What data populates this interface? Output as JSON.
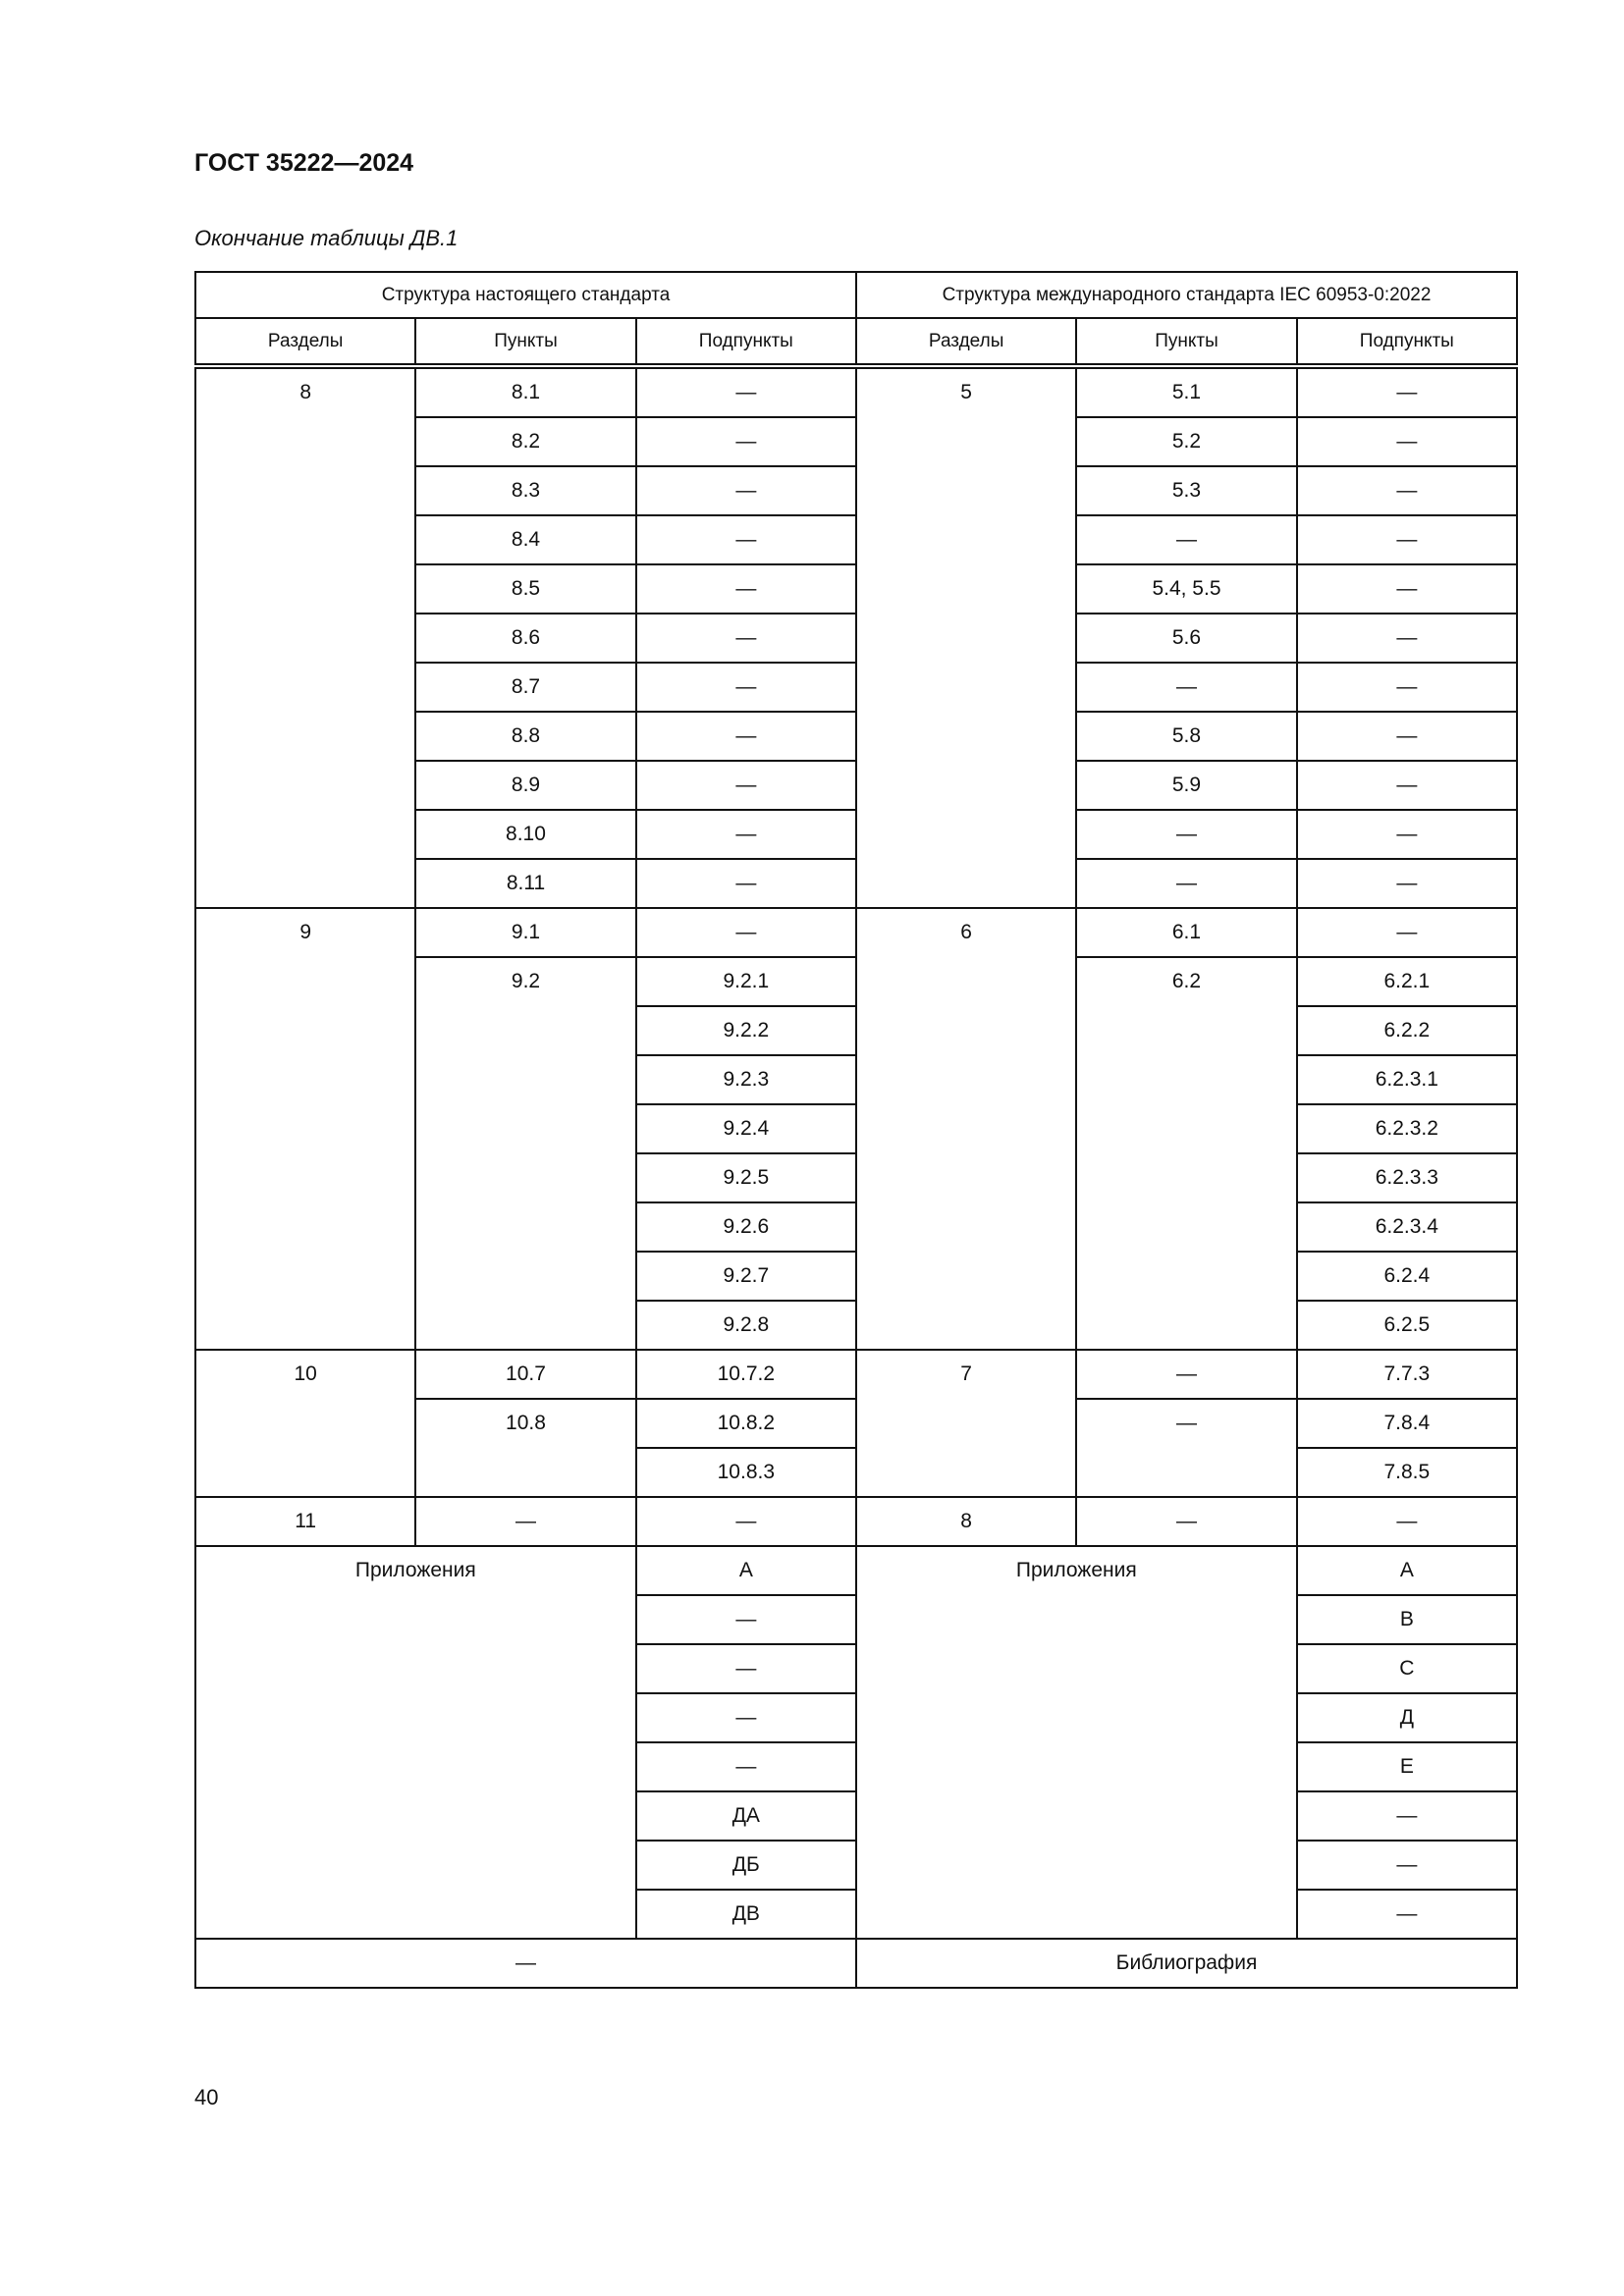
{
  "header": {
    "title": "ГОСТ 35222—2024"
  },
  "caption": "Окончание таблицы ДВ.1",
  "table": {
    "group_headers": [
      {
        "text": "Структура настоящего стандарта",
        "colspan": 3
      },
      {
        "text": "Структура международного стандарта IEC 60953-0:2022",
        "colspan": 3
      }
    ],
    "column_headers": [
      "Разделы",
      "Пункты",
      "Подпункты",
      "Разделы",
      "Пункты",
      "Подпункты"
    ],
    "rows": [
      [
        {
          "text": "8",
          "rowspan": 11
        },
        {
          "text": "8.1"
        },
        {
          "text": "—"
        },
        {
          "text": "5",
          "rowspan": 11
        },
        {
          "text": "5.1"
        },
        {
          "text": "—"
        }
      ],
      [
        {
          "text": "8.2"
        },
        {
          "text": "—"
        },
        {
          "text": "5.2"
        },
        {
          "text": "—"
        }
      ],
      [
        {
          "text": "8.3"
        },
        {
          "text": "—"
        },
        {
          "text": "5.3"
        },
        {
          "text": "—"
        }
      ],
      [
        {
          "text": "8.4"
        },
        {
          "text": "—"
        },
        {
          "text": "—"
        },
        {
          "text": "—"
        }
      ],
      [
        {
          "text": "8.5"
        },
        {
          "text": "—"
        },
        {
          "text": "5.4, 5.5"
        },
        {
          "text": "—"
        }
      ],
      [
        {
          "text": "8.6"
        },
        {
          "text": "—"
        },
        {
          "text": "5.6"
        },
        {
          "text": "—"
        }
      ],
      [
        {
          "text": "8.7"
        },
        {
          "text": "—"
        },
        {
          "text": "—"
        },
        {
          "text": "—"
        }
      ],
      [
        {
          "text": "8.8"
        },
        {
          "text": "—"
        },
        {
          "text": "5.8"
        },
        {
          "text": "—"
        }
      ],
      [
        {
          "text": "8.9"
        },
        {
          "text": "—"
        },
        {
          "text": "5.9"
        },
        {
          "text": "—"
        }
      ],
      [
        {
          "text": "8.10"
        },
        {
          "text": "—"
        },
        {
          "text": "—"
        },
        {
          "text": "—"
        }
      ],
      [
        {
          "text": "8.11"
        },
        {
          "text": "—"
        },
        {
          "text": "—"
        },
        {
          "text": "—"
        }
      ],
      [
        {
          "text": "9",
          "rowspan": 9
        },
        {
          "text": "9.1"
        },
        {
          "text": "—"
        },
        {
          "text": "6",
          "rowspan": 9
        },
        {
          "text": "6.1"
        },
        {
          "text": "—"
        }
      ],
      [
        {
          "text": "9.2",
          "rowspan": 8
        },
        {
          "text": "9.2.1"
        },
        {
          "text": "6.2",
          "rowspan": 8
        },
        {
          "text": "6.2.1"
        }
      ],
      [
        {
          "text": "9.2.2"
        },
        {
          "text": "6.2.2"
        }
      ],
      [
        {
          "text": "9.2.3"
        },
        {
          "text": "6.2.3.1"
        }
      ],
      [
        {
          "text": "9.2.4"
        },
        {
          "text": "6.2.3.2"
        }
      ],
      [
        {
          "text": "9.2.5"
        },
        {
          "text": "6.2.3.3"
        }
      ],
      [
        {
          "text": "9.2.6"
        },
        {
          "text": "6.2.3.4"
        }
      ],
      [
        {
          "text": "9.2.7"
        },
        {
          "text": "6.2.4"
        }
      ],
      [
        {
          "text": "9.2.8"
        },
        {
          "text": "6.2.5"
        }
      ],
      [
        {
          "text": "10",
          "rowspan": 3
        },
        {
          "text": "10.7"
        },
        {
          "text": "10.7.2"
        },
        {
          "text": "7",
          "rowspan": 3
        },
        {
          "text": "—"
        },
        {
          "text": "7.7.3"
        }
      ],
      [
        {
          "text": "10.8",
          "rowspan": 2
        },
        {
          "text": "10.8.2"
        },
        {
          "text": "—",
          "rowspan": 2
        },
        {
          "text": "7.8.4"
        }
      ],
      [
        {
          "text": "10.8.3"
        },
        {
          "text": "7.8.5"
        }
      ],
      [
        {
          "text": "11"
        },
        {
          "text": "—"
        },
        {
          "text": "—"
        },
        {
          "text": "8"
        },
        {
          "text": "—"
        },
        {
          "text": "—"
        }
      ],
      [
        {
          "text": "Приложения",
          "rowspan": 8,
          "colspan": 2
        },
        {
          "text": "А"
        },
        {
          "text": "Приложения",
          "rowspan": 8,
          "colspan": 2
        },
        {
          "text": "А"
        }
      ],
      [
        {
          "text": "—"
        },
        {
          "text": "B"
        }
      ],
      [
        {
          "text": "—"
        },
        {
          "text": "C"
        }
      ],
      [
        {
          "text": "—"
        },
        {
          "text": "Д"
        }
      ],
      [
        {
          "text": "—"
        },
        {
          "text": "E"
        }
      ],
      [
        {
          "text": "ДА"
        },
        {
          "text": "—"
        }
      ],
      [
        {
          "text": "ДБ"
        },
        {
          "text": "—"
        }
      ],
      [
        {
          "text": "ДВ"
        },
        {
          "text": "—"
        }
      ],
      [
        {
          "text": "—",
          "colspan": 3
        },
        {
          "text": "Библиография",
          "colspan": 3
        }
      ]
    ]
  },
  "footer": {
    "page_number": "40"
  }
}
